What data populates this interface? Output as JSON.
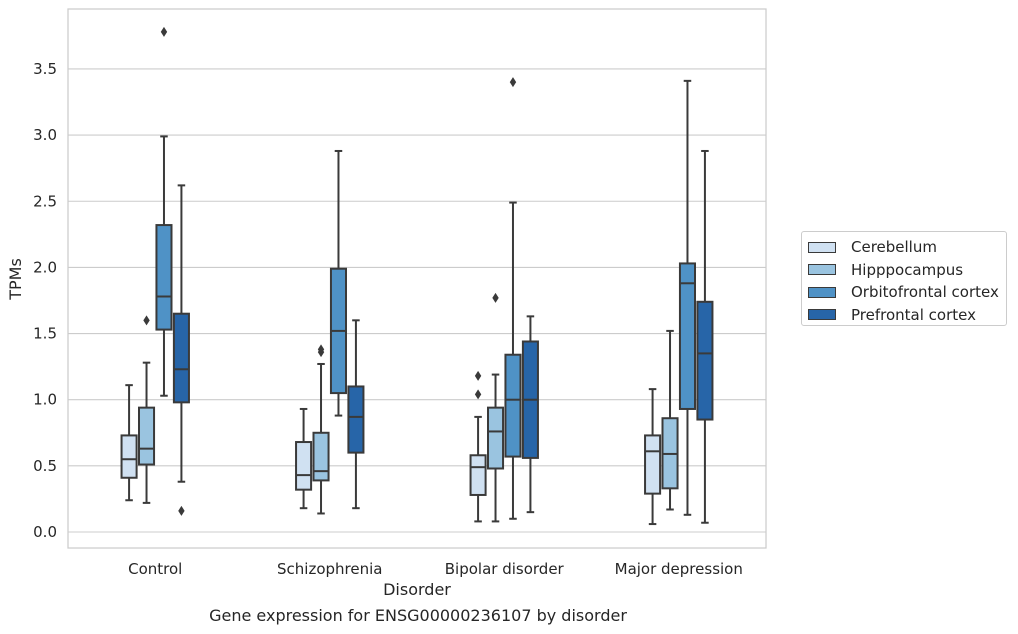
{
  "caption": "Gene expression for ENSG00000236107 by disorder",
  "chart_data": {
    "type": "box",
    "xlabel": "Disorder",
    "ylabel": "TPMs",
    "ylim": [
      -0.12,
      3.93
    ],
    "yticks": [
      "0.0",
      "0.5",
      "1.0",
      "1.5",
      "2.0",
      "2.5",
      "3.0",
      "3.5"
    ],
    "grid": true,
    "legend_position": "right",
    "categories": [
      "Control",
      "Schizophrenia",
      "Bipolar disorder",
      "Major depression"
    ],
    "series": [
      {
        "name": "Cerebellum",
        "color": "#d0e1f2",
        "boxes": [
          {
            "whisker_low": 0.24,
            "q1": 0.41,
            "median": 0.55,
            "q3": 0.73,
            "whisker_high": 1.11,
            "outliers": []
          },
          {
            "whisker_low": 0.18,
            "q1": 0.32,
            "median": 0.43,
            "q3": 0.68,
            "whisker_high": 0.93,
            "outliers": []
          },
          {
            "whisker_low": 0.08,
            "q1": 0.28,
            "median": 0.49,
            "q3": 0.58,
            "whisker_high": 0.87,
            "outliers": [
              1.04,
              1.18
            ]
          },
          {
            "whisker_low": 0.06,
            "q1": 0.29,
            "median": 0.61,
            "q3": 0.73,
            "whisker_high": 1.08,
            "outliers": []
          }
        ]
      },
      {
        "name": "Hipppocampus",
        "color": "#9ac4e0",
        "boxes": [
          {
            "whisker_low": 0.22,
            "q1": 0.51,
            "median": 0.63,
            "q3": 0.94,
            "whisker_high": 1.28,
            "outliers": [
              1.6
            ]
          },
          {
            "whisker_low": 0.14,
            "q1": 0.39,
            "median": 0.46,
            "q3": 0.75,
            "whisker_high": 1.27,
            "outliers": [
              1.36,
              1.38
            ]
          },
          {
            "whisker_low": 0.08,
            "q1": 0.48,
            "median": 0.76,
            "q3": 0.94,
            "whisker_high": 1.19,
            "outliers": [
              1.77
            ]
          },
          {
            "whisker_low": 0.17,
            "q1": 0.33,
            "median": 0.59,
            "q3": 0.86,
            "whisker_high": 1.52,
            "outliers": []
          }
        ]
      },
      {
        "name": "Orbitofrontal cortex",
        "color": "#4f92c6",
        "boxes": [
          {
            "whisker_low": 1.03,
            "q1": 1.53,
            "median": 1.78,
            "q3": 2.32,
            "whisker_high": 2.99,
            "outliers": [
              3.78
            ]
          },
          {
            "whisker_low": 0.88,
            "q1": 1.05,
            "median": 1.52,
            "q3": 1.99,
            "whisker_high": 2.88,
            "outliers": []
          },
          {
            "whisker_low": 0.1,
            "q1": 0.57,
            "median": 1.0,
            "q3": 1.34,
            "whisker_high": 2.49,
            "outliers": [
              3.4
            ]
          },
          {
            "whisker_low": 0.13,
            "q1": 0.93,
            "median": 1.88,
            "q3": 2.03,
            "whisker_high": 3.41,
            "outliers": []
          }
        ]
      },
      {
        "name": "Prefrontal cortex",
        "color": "#2765a8",
        "boxes": [
          {
            "whisker_low": 0.38,
            "q1": 0.98,
            "median": 1.23,
            "q3": 1.65,
            "whisker_high": 2.62,
            "outliers": [
              0.16
            ]
          },
          {
            "whisker_low": 0.18,
            "q1": 0.6,
            "median": 0.87,
            "q3": 1.1,
            "whisker_high": 1.6,
            "outliers": []
          },
          {
            "whisker_low": 0.15,
            "q1": 0.56,
            "median": 1.0,
            "q3": 1.44,
            "whisker_high": 1.63,
            "outliers": []
          },
          {
            "whisker_low": 0.07,
            "q1": 0.85,
            "median": 1.35,
            "q3": 1.74,
            "whisker_high": 2.88,
            "outliers": []
          }
        ]
      }
    ]
  }
}
